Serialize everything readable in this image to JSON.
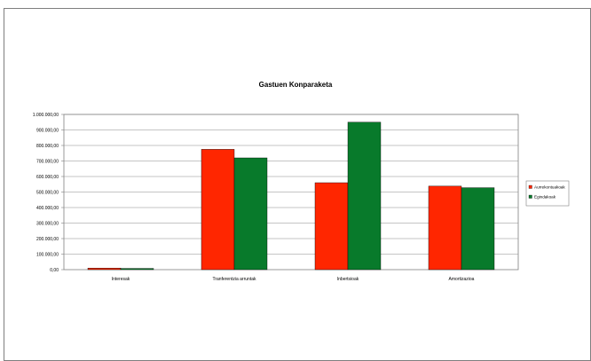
{
  "chart_data": {
    "type": "bar",
    "title": "Gastuen Konparaketa",
    "xlabel": "",
    "ylabel": "",
    "categories": [
      "Interesak",
      "Tranferentzia arruntak",
      "Inbertsioak",
      "Amortizazioa"
    ],
    "series": [
      {
        "name": "Aurrekontuakoak",
        "color": "#ff2600",
        "values": [
          10000,
          775000,
          560000,
          538000
        ]
      },
      {
        "name": "Egindakoak",
        "color": "#087a2b",
        "values": [
          8000,
          720000,
          950000,
          528000
        ]
      }
    ],
    "ylim": [
      0,
      1000000
    ],
    "yticks": [
      {
        "value": 0,
        "label": "0,00"
      },
      {
        "value": 100000,
        "label": "100.000,00"
      },
      {
        "value": 200000,
        "label": "200.000,00"
      },
      {
        "value": 300000,
        "label": "300.000,00"
      },
      {
        "value": 400000,
        "label": "400.000,00"
      },
      {
        "value": 500000,
        "label": "500.000,00"
      },
      {
        "value": 600000,
        "label": "600.000,00"
      },
      {
        "value": 700000,
        "label": "700.000,00"
      },
      {
        "value": 800000,
        "label": "800.000,00"
      },
      {
        "value": 900000,
        "label": "900.000,00"
      },
      {
        "value": 1000000,
        "label": "1.000.000,00"
      }
    ],
    "grid": true,
    "legend": "right"
  }
}
